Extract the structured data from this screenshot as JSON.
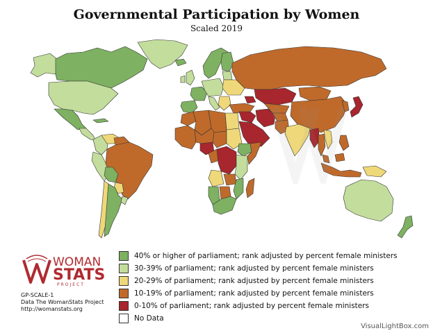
{
  "title": "Governmental Participation by Women",
  "subtitle": "Scaled 2019",
  "colors": {
    "c40": "#7eb161",
    "c30": "#c3dd9c",
    "c20": "#efd879",
    "c10": "#bf6a2b",
    "c0": "#a8262d",
    "nodata": "#ffffff",
    "border": "#333333"
  },
  "legend": [
    {
      "label": "40% or higher of parliament; rank adjusted by percent female ministers",
      "color_key": "c40"
    },
    {
      "label": "30-39% of parliament; rank adjusted by percent female ministers",
      "color_key": "c30"
    },
    {
      "label": "20-29% of parliament; rank adjusted by percent female ministers",
      "color_key": "c20"
    },
    {
      "label": "10-19% of parliament; rank adjusted by percent female ministers",
      "color_key": "c10"
    },
    {
      "label": "0-10% of parliament; rank adjusted by percent female ministers",
      "color_key": "c0"
    },
    {
      "label": "No Data",
      "color_key": "nodata"
    }
  ],
  "logo": {
    "line1": "WOMAN",
    "line2": "STATS",
    "line3": "PROJECT"
  },
  "meta": {
    "code": "GP-SCALE-1",
    "source": "Data The WomanStats Project",
    "url": "http://womanstats.org"
  },
  "credit": "VisualLightBox.com",
  "regions": [
    {
      "name": "alaska",
      "cat": "c30"
    },
    {
      "name": "canada",
      "cat": "c40"
    },
    {
      "name": "greenland",
      "cat": "c30"
    },
    {
      "name": "usa",
      "cat": "c30"
    },
    {
      "name": "mexico",
      "cat": "c40"
    },
    {
      "name": "central-america",
      "cat": "c30"
    },
    {
      "name": "cuba",
      "cat": "c40"
    },
    {
      "name": "colombia",
      "cat": "c30"
    },
    {
      "name": "venezuela",
      "cat": "c20"
    },
    {
      "name": "guianas",
      "cat": "c10"
    },
    {
      "name": "brazil",
      "cat": "c10"
    },
    {
      "name": "peru",
      "cat": "c30"
    },
    {
      "name": "bolivia",
      "cat": "c40"
    },
    {
      "name": "paraguay",
      "cat": "c20"
    },
    {
      "name": "chile",
      "cat": "c20"
    },
    {
      "name": "argentina",
      "cat": "c40"
    },
    {
      "name": "uruguay",
      "cat": "c30"
    },
    {
      "name": "iceland",
      "cat": "c40"
    },
    {
      "name": "scandinavia",
      "cat": "c40"
    },
    {
      "name": "finland",
      "cat": "c40"
    },
    {
      "name": "uk",
      "cat": "c30"
    },
    {
      "name": "ireland",
      "cat": "c30"
    },
    {
      "name": "iberia",
      "cat": "c40"
    },
    {
      "name": "france",
      "cat": "c40"
    },
    {
      "name": "central-europe",
      "cat": "c30"
    },
    {
      "name": "italy",
      "cat": "c30"
    },
    {
      "name": "baltics",
      "cat": "c30"
    },
    {
      "name": "belarus-ukraine",
      "cat": "c20"
    },
    {
      "name": "balkans",
      "cat": "c20"
    },
    {
      "name": "turkey",
      "cat": "c10"
    },
    {
      "name": "russia",
      "cat": "c10"
    },
    {
      "name": "kazakhstan",
      "cat": "c0"
    },
    {
      "name": "caucasus",
      "cat": "c0"
    },
    {
      "name": "central-asia",
      "cat": "c10"
    },
    {
      "name": "mongolia",
      "cat": "c10"
    },
    {
      "name": "china",
      "cat": "c10"
    },
    {
      "name": "korea",
      "cat": "c10"
    },
    {
      "name": "japan",
      "cat": "c0"
    },
    {
      "name": "iran",
      "cat": "c0"
    },
    {
      "name": "iraq-syria",
      "cat": "c0"
    },
    {
      "name": "arabia",
      "cat": "c0"
    },
    {
      "name": "afghanistan",
      "cat": "c10"
    },
    {
      "name": "pakistan",
      "cat": "c10"
    },
    {
      "name": "india",
      "cat": "c20"
    },
    {
      "name": "myanmar",
      "cat": "c0"
    },
    {
      "name": "thailand",
      "cat": "c10"
    },
    {
      "name": "vietnam",
      "cat": "c20"
    },
    {
      "name": "philippines",
      "cat": "c10"
    },
    {
      "name": "malaysia",
      "cat": "c10"
    },
    {
      "name": "indonesia",
      "cat": "c10"
    },
    {
      "name": "papua",
      "cat": "c20"
    },
    {
      "name": "australia",
      "cat": "c30"
    },
    {
      "name": "new-zealand",
      "cat": "c40"
    },
    {
      "name": "morocco",
      "cat": "c10"
    },
    {
      "name": "algeria",
      "cat": "c10"
    },
    {
      "name": "libya",
      "cat": "c10"
    },
    {
      "name": "egypt",
      "cat": "c20"
    },
    {
      "name": "west-africa",
      "cat": "c10"
    },
    {
      "name": "mali-niger",
      "cat": "c10"
    },
    {
      "name": "nigeria",
      "cat": "c0"
    },
    {
      "name": "chad",
      "cat": "c10"
    },
    {
      "name": "sudan",
      "cat": "c20"
    },
    {
      "name": "ethiopia",
      "cat": "c40"
    },
    {
      "name": "somalia",
      "cat": "c10"
    },
    {
      "name": "congo",
      "cat": "c0"
    },
    {
      "name": "cameroon",
      "cat": "c10"
    },
    {
      "name": "kenya-tanzania",
      "cat": "c30"
    },
    {
      "name": "angola",
      "cat": "c20"
    },
    {
      "name": "zambia",
      "cat": "c10"
    },
    {
      "name": "mozambique",
      "cat": "c40"
    },
    {
      "name": "namibia",
      "cat": "c40"
    },
    {
      "name": "botswana",
      "cat": "c10"
    },
    {
      "name": "south-africa",
      "cat": "c40"
    },
    {
      "name": "madagascar",
      "cat": "c10"
    }
  ]
}
